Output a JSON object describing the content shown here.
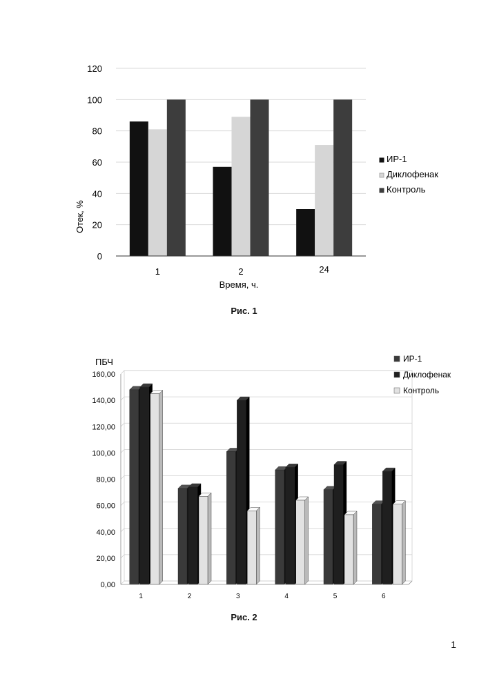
{
  "page_number": "1",
  "chart_data": [
    {
      "type": "bar",
      "caption": "Рис. 1",
      "title": "",
      "xlabel": "Время, ч.",
      "ylabel": "Отек, %",
      "categories": [
        "1",
        "2",
        "24"
      ],
      "ylim": [
        0,
        120
      ],
      "yticks": [
        "0",
        "20",
        "40",
        "60",
        "80",
        "100",
        "120"
      ],
      "grid": true,
      "legend_position": "right",
      "series": [
        {
          "name": "ИР-1",
          "values": [
            86,
            57,
            30
          ],
          "color": "#111111"
        },
        {
          "name": "Диклофенак",
          "values": [
            81,
            89,
            71
          ],
          "color": "#d6d6d6"
        },
        {
          "name": "Контроль",
          "values": [
            100,
            100,
            100
          ],
          "color": "#3d3d3d"
        }
      ]
    },
    {
      "type": "bar",
      "style": "3d",
      "caption": "Рис. 2",
      "title": "",
      "ylabel": "ПБЧ",
      "xlabel": "",
      "categories": [
        "1",
        "2",
        "3",
        "4",
        "5",
        "6"
      ],
      "ylim": [
        0,
        160
      ],
      "yticks": [
        "0,00",
        "20,00",
        "40,00",
        "60,00",
        "80,00",
        "100,00",
        "120,00",
        "140,00",
        "160,00"
      ],
      "grid": true,
      "legend_position": "top-right",
      "series": [
        {
          "name": "ИР-1",
          "values": [
            148,
            73,
            101,
            87,
            72,
            61
          ],
          "color": "#3a3a3a"
        },
        {
          "name": "Диклофенак",
          "values": [
            150,
            74,
            140,
            89,
            91,
            86
          ],
          "color": "#1f1f1f"
        },
        {
          "name": "Контроль",
          "values": [
            145,
            67,
            56,
            64,
            53,
            61
          ],
          "color": "#e2e2e2"
        }
      ]
    }
  ]
}
